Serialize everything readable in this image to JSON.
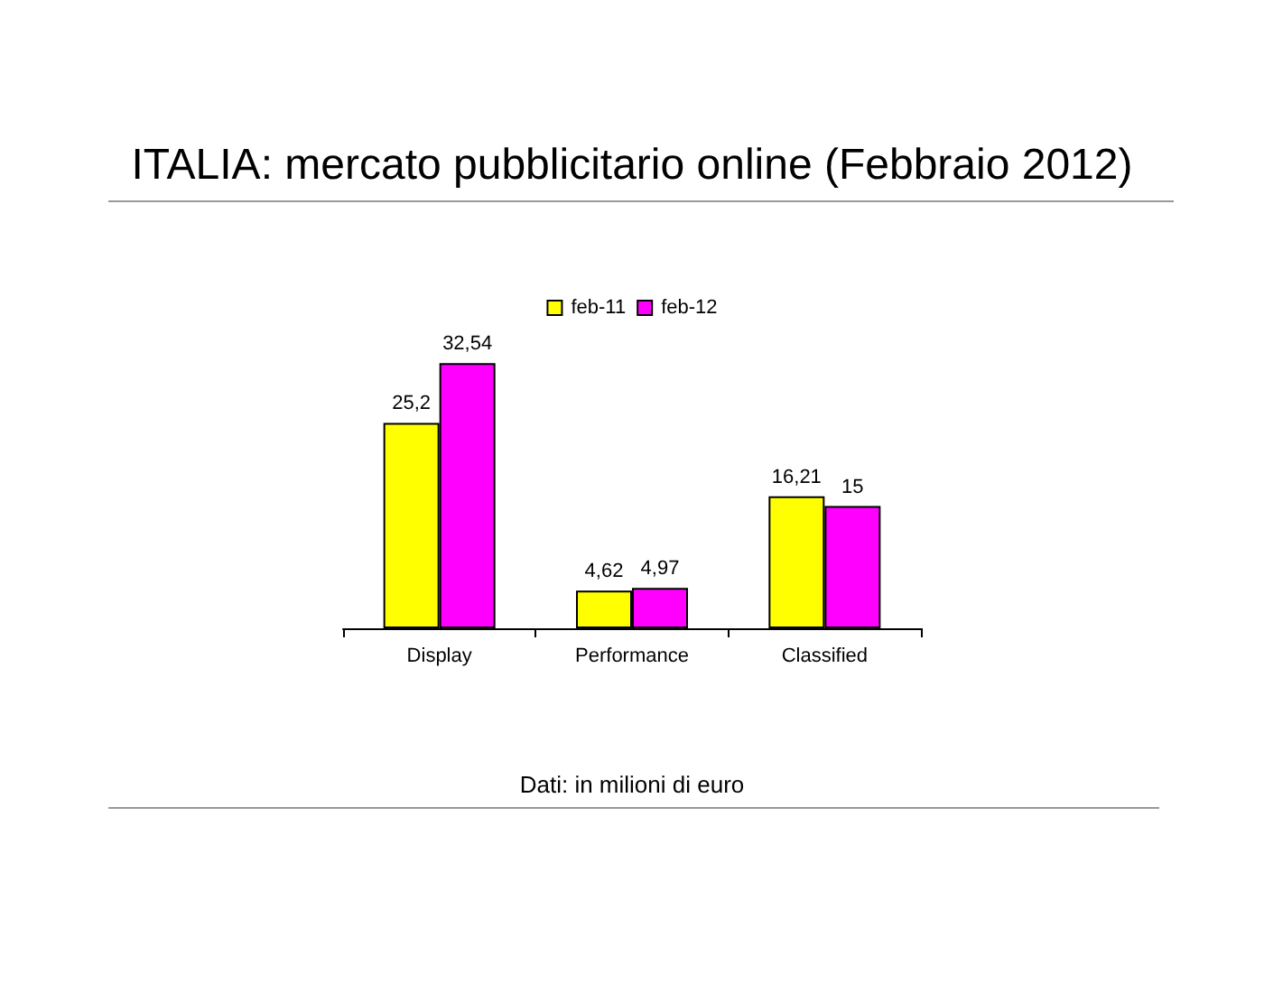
{
  "chart_data": {
    "type": "bar",
    "title": "ITALIA: mercato pubblicitario online (Febbraio 2012)",
    "categories": [
      "Display",
      "Performance",
      "Classified"
    ],
    "series": [
      {
        "name": "feb-11",
        "color": "#ffff00",
        "values": [
          25.2,
          4.62,
          16.21
        ],
        "value_labels": [
          "25,2",
          "4,62",
          "16,21"
        ]
      },
      {
        "name": "feb-12",
        "color": "#ff00ff",
        "values": [
          32.54,
          4.97,
          15
        ],
        "value_labels": [
          "32,54",
          "4,97",
          "15"
        ]
      }
    ],
    "annotations": [
      "Dati: in milioni di euro"
    ],
    "legend": "top",
    "grid": false,
    "tick_labels": "x"
  }
}
